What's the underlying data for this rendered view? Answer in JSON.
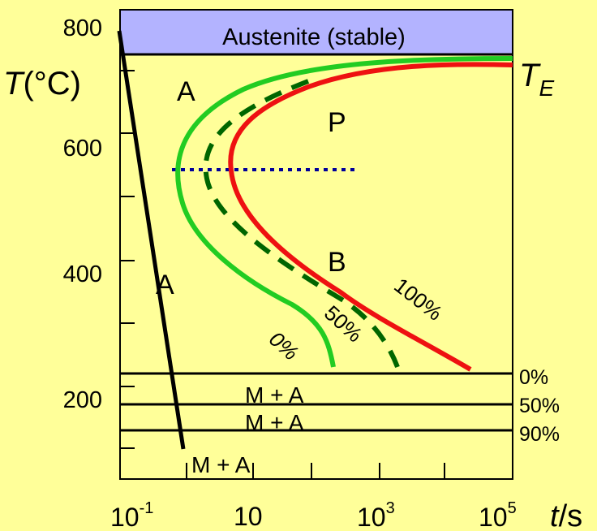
{
  "colors": {
    "background": "#ffff99",
    "austenite_band": "#b3b3ff",
    "start_curve": "#22cc22",
    "half_curve": "#006600",
    "finish_curve": "#ee1111",
    "isothermal_line": "#000099",
    "lines": "#000000"
  },
  "y_axis": {
    "label_symbol": "T",
    "label_unit": "(°C)",
    "tick_labels": [
      "800",
      "600",
      "400",
      "200"
    ]
  },
  "x_axis": {
    "label_symbol": "t",
    "label_unit": "/s",
    "tick_labels": [
      {
        "base": "10",
        "exp": "-1"
      },
      {
        "base": "10",
        "exp": ""
      },
      {
        "base": "10",
        "exp": "3"
      },
      {
        "base": "10",
        "exp": "5"
      }
    ]
  },
  "band_label": "Austenite (stable)",
  "eutectoid": {
    "symbol": "T",
    "subscript": "E"
  },
  "region_labels": {
    "a_upper": "A",
    "p": "P",
    "b": "B",
    "a_lower": "A",
    "ma_1": "M + A",
    "ma_2": "M + A",
    "ma_3": "M + A"
  },
  "curve_labels": {
    "start": "0%",
    "half": "50%",
    "finish": "100%"
  },
  "martensite_lines": [
    "0%",
    "50%",
    "90%"
  ]
}
